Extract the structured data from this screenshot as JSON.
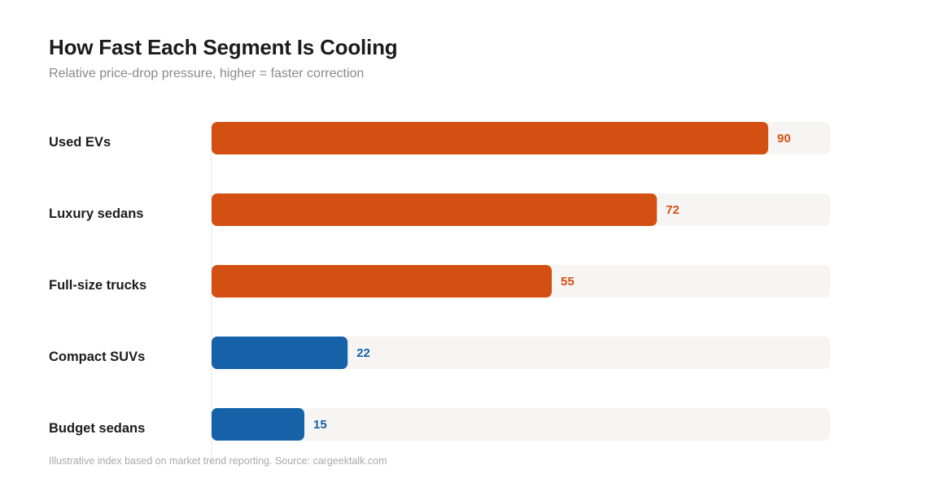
{
  "chart_data": {
    "type": "bar",
    "orientation": "horizontal",
    "title": "How Fast Each Segment Is Cooling",
    "subtitle": "Relative price-drop pressure, higher = faster correction",
    "categories": [
      "Used EVs",
      "Luxury sedans",
      "Full-size trucks",
      "Compact SUVs",
      "Budget sedans"
    ],
    "values": [
      90,
      72,
      55,
      22,
      15
    ],
    "xlim": [
      0,
      100
    ],
    "grid": false,
    "legend": "none",
    "footnote": "Illustrative index based on market trend reporting. Source: cargeektalk.com"
  },
  "colors": {
    "high": "#d35012",
    "low": "#1662a8",
    "track": "#f6f5f3",
    "axis": "#e4e4e4"
  },
  "color_threshold": 50
}
